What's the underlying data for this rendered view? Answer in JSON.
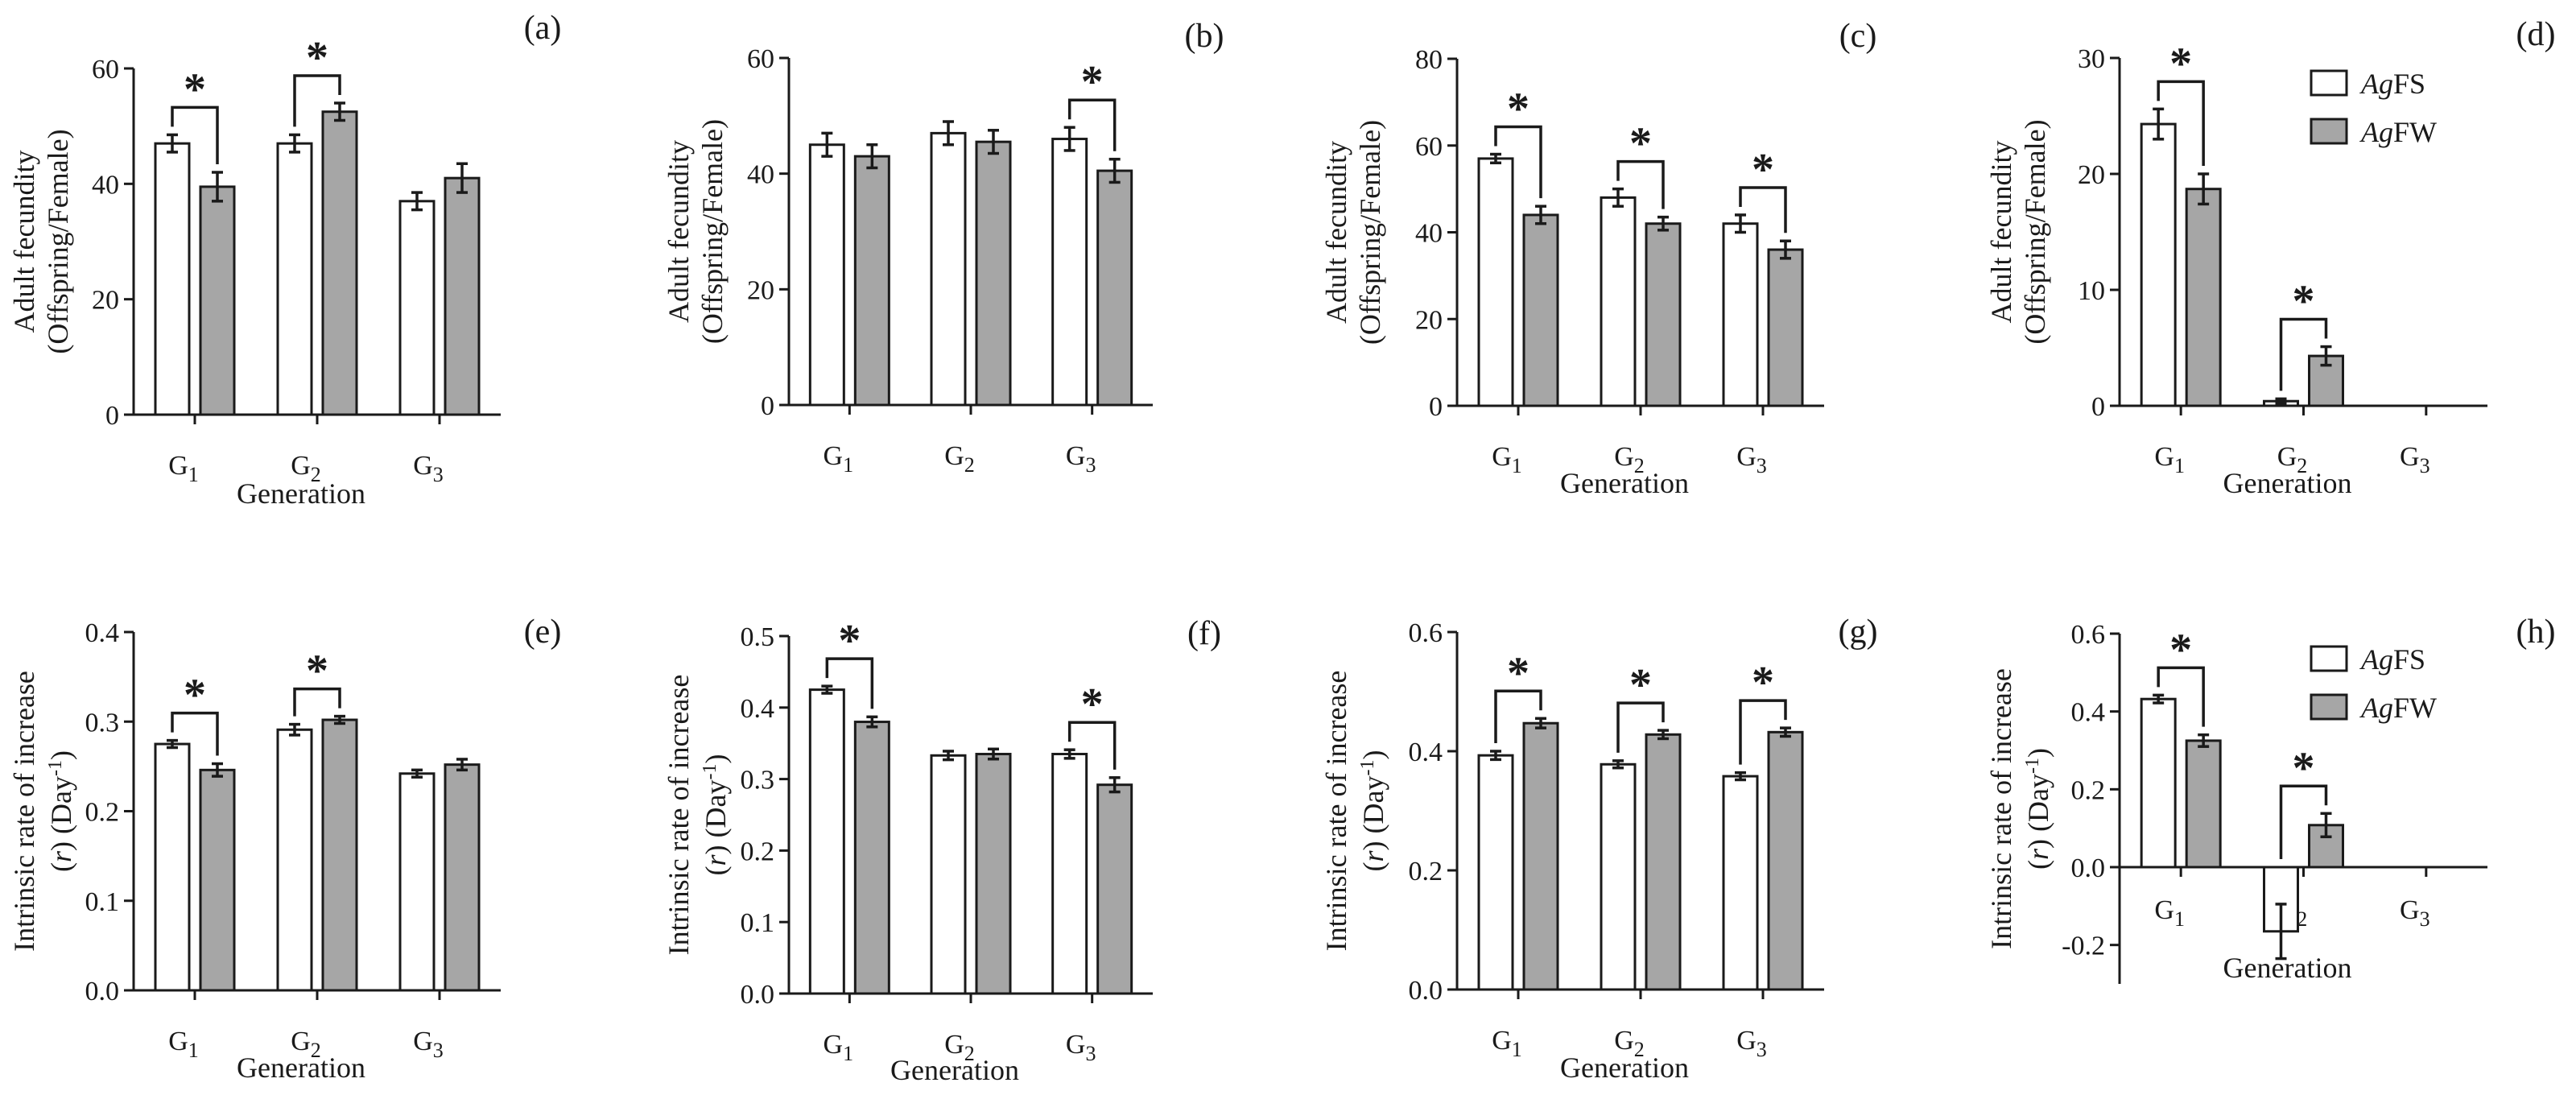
{
  "colors": {
    "AgFS": "#ffffff",
    "AgFW": "#a6a6a6",
    "stroke": "#1a1a1a"
  },
  "legend": [
    {
      "prefix": "Ag",
      "suffix": "FS",
      "color": "#ffffff"
    },
    {
      "prefix": "Ag",
      "suffix": "FW",
      "color": "#a6a6a6"
    }
  ],
  "chart_data": [
    {
      "type": "bar",
      "panel": "(a)",
      "xlabel": "Generation",
      "ylabel_lines": [
        "Adult fecundity",
        "(Offspring/Female)"
      ],
      "categories": [
        {
          "base": "G",
          "sub": "1"
        },
        {
          "base": "G",
          "sub": "2"
        },
        {
          "base": "G",
          "sub": "3"
        }
      ],
      "ylim": [
        0,
        60
      ],
      "yticks": [
        0,
        20,
        40,
        60
      ],
      "ytick_labels": [
        "0",
        "20",
        "40",
        "60"
      ],
      "series": [
        {
          "values": [
            47,
            47,
            37
          ],
          "errors": [
            1.5,
            1.5,
            1.5
          ]
        },
        {
          "values": [
            39.5,
            52.5,
            41
          ],
          "errors": [
            2.5,
            1.5,
            2.5
          ]
        }
      ],
      "significant": [
        true,
        true,
        false
      ]
    },
    {
      "type": "bar",
      "panel": "(b)",
      "xlabel": "",
      "ylabel_lines": [
        "Adult fecundity",
        "(Offspring/Female)"
      ],
      "categories": [
        {
          "base": "G",
          "sub": "1"
        },
        {
          "base": "G",
          "sub": "2"
        },
        {
          "base": "G",
          "sub": "3"
        }
      ],
      "ylim": [
        0,
        60
      ],
      "yticks": [
        0,
        20,
        40,
        60
      ],
      "ytick_labels": [
        "0",
        "20",
        "40",
        "60"
      ],
      "series": [
        {
          "values": [
            45,
            47,
            46
          ],
          "errors": [
            2,
            2,
            2
          ]
        },
        {
          "values": [
            43,
            45.5,
            40.5
          ],
          "errors": [
            2,
            2,
            2
          ]
        }
      ],
      "significant": [
        false,
        false,
        true
      ]
    },
    {
      "type": "bar",
      "panel": "(c)",
      "xlabel": "Generation",
      "ylabel_lines": [
        "Adult fecundity",
        "(Offspring/Female)"
      ],
      "categories": [
        {
          "base": "G",
          "sub": "1"
        },
        {
          "base": "G",
          "sub": "2"
        },
        {
          "base": "G",
          "sub": "3"
        }
      ],
      "ylim": [
        0,
        80
      ],
      "yticks": [
        0,
        20,
        40,
        60,
        80
      ],
      "ytick_labels": [
        "0",
        "20",
        "40",
        "60",
        "80"
      ],
      "series": [
        {
          "values": [
            57,
            48,
            42
          ],
          "errors": [
            1,
            2,
            2
          ]
        },
        {
          "values": [
            44,
            42,
            36
          ],
          "errors": [
            2,
            1.5,
            2
          ]
        }
      ],
      "significant": [
        true,
        true,
        true
      ]
    },
    {
      "type": "bar",
      "panel": "(d)",
      "xlabel": "Generation",
      "ylabel_lines": [
        "Adult fecundity",
        "(Offspring/Female)"
      ],
      "categories": [
        {
          "base": "G",
          "sub": "1"
        },
        {
          "base": "G",
          "sub": "2"
        },
        {
          "base": "G",
          "sub": "3"
        }
      ],
      "ylim": [
        0,
        30
      ],
      "yticks": [
        0,
        10,
        20,
        30
      ],
      "ytick_labels": [
        "0",
        "10",
        "20",
        "30"
      ],
      "series": [
        {
          "values": [
            24.3,
            0.4,
            null
          ],
          "errors": [
            1.3,
            0.2,
            null
          ]
        },
        {
          "values": [
            18.7,
            4.3,
            null
          ],
          "errors": [
            1.3,
            0.8,
            null
          ]
        }
      ],
      "significant": [
        true,
        true,
        false
      ],
      "legend": true
    },
    {
      "type": "bar",
      "panel": "(e)",
      "xlabel": "Generation",
      "ylabel_lines": [
        "Intrinsic rate of increase",
        "(r) (Day-1)"
      ],
      "categories": [
        {
          "base": "G",
          "sub": "1"
        },
        {
          "base": "G",
          "sub": "2"
        },
        {
          "base": "G",
          "sub": "3"
        }
      ],
      "ylim": [
        0,
        0.4
      ],
      "yticks": [
        0,
        0.1,
        0.2,
        0.3,
        0.4
      ],
      "ytick_labels": [
        "0.0",
        "0.1",
        "0.2",
        "0.3",
        "0.4"
      ],
      "series": [
        {
          "values": [
            0.275,
            0.291,
            0.242
          ],
          "errors": [
            0.004,
            0.006,
            0.004
          ]
        },
        {
          "values": [
            0.246,
            0.302,
            0.252
          ],
          "errors": [
            0.007,
            0.004,
            0.006
          ]
        }
      ],
      "significant": [
        true,
        true,
        false
      ]
    },
    {
      "type": "bar",
      "panel": "(f)",
      "xlabel": "Generation",
      "ylabel_lines": [
        "Intrinsic rate of increase",
        "(r) (Day-1)"
      ],
      "categories": [
        {
          "base": "G",
          "sub": "1"
        },
        {
          "base": "G",
          "sub": "2"
        },
        {
          "base": "G",
          "sub": "3"
        }
      ],
      "ylim": [
        0,
        0.5
      ],
      "yticks": [
        0,
        0.1,
        0.2,
        0.3,
        0.4,
        0.5
      ],
      "ytick_labels": [
        "0.0",
        "0.1",
        "0.2",
        "0.3",
        "0.4",
        "0.5"
      ],
      "series": [
        {
          "values": [
            0.425,
            0.333,
            0.335
          ],
          "errors": [
            0.005,
            0.006,
            0.006
          ]
        },
        {
          "values": [
            0.38,
            0.335,
            0.292
          ],
          "errors": [
            0.007,
            0.007,
            0.01
          ]
        }
      ],
      "significant": [
        true,
        false,
        true
      ]
    },
    {
      "type": "bar",
      "panel": "(g)",
      "xlabel": "Generation",
      "ylabel_lines": [
        "Intrinsic rate of increase",
        "(r) (Day-1)"
      ],
      "categories": [
        {
          "base": "G",
          "sub": "1"
        },
        {
          "base": "G",
          "sub": "2"
        },
        {
          "base": "G",
          "sub": "3"
        }
      ],
      "ylim": [
        0,
        0.6
      ],
      "yticks": [
        0,
        0.2,
        0.4,
        0.6
      ],
      "ytick_labels": [
        "0.0",
        "0.2",
        "0.4",
        "0.6"
      ],
      "series": [
        {
          "values": [
            0.393,
            0.378,
            0.358
          ],
          "errors": [
            0.007,
            0.006,
            0.006
          ]
        },
        {
          "values": [
            0.447,
            0.428,
            0.432
          ],
          "errors": [
            0.008,
            0.007,
            0.007
          ]
        }
      ],
      "significant": [
        true,
        true,
        true
      ]
    },
    {
      "type": "bar",
      "panel": "(h)",
      "xlabel": "Generation",
      "ylabel_lines": [
        "Intrinsic rate of increase",
        "(r) (Day-1)"
      ],
      "categories": [
        {
          "base": "G",
          "sub": "1"
        },
        {
          "base": "G",
          "sub": "2"
        },
        {
          "base": "G",
          "sub": "3"
        }
      ],
      "ylim": [
        -0.3,
        0.6
      ],
      "yticks": [
        -0.2,
        0,
        0.2,
        0.4,
        0.6
      ],
      "ytick_labels": [
        "-0.2",
        "0.0",
        "0.2",
        "0.4",
        "0.6"
      ],
      "series": [
        {
          "values": [
            0.432,
            -0.165,
            null
          ],
          "errors": [
            0.01,
            0.07,
            null
          ]
        },
        {
          "values": [
            0.325,
            0.108,
            null
          ],
          "errors": [
            0.015,
            0.03,
            null
          ]
        }
      ],
      "significant": [
        true,
        true,
        false
      ],
      "legend": true
    }
  ]
}
